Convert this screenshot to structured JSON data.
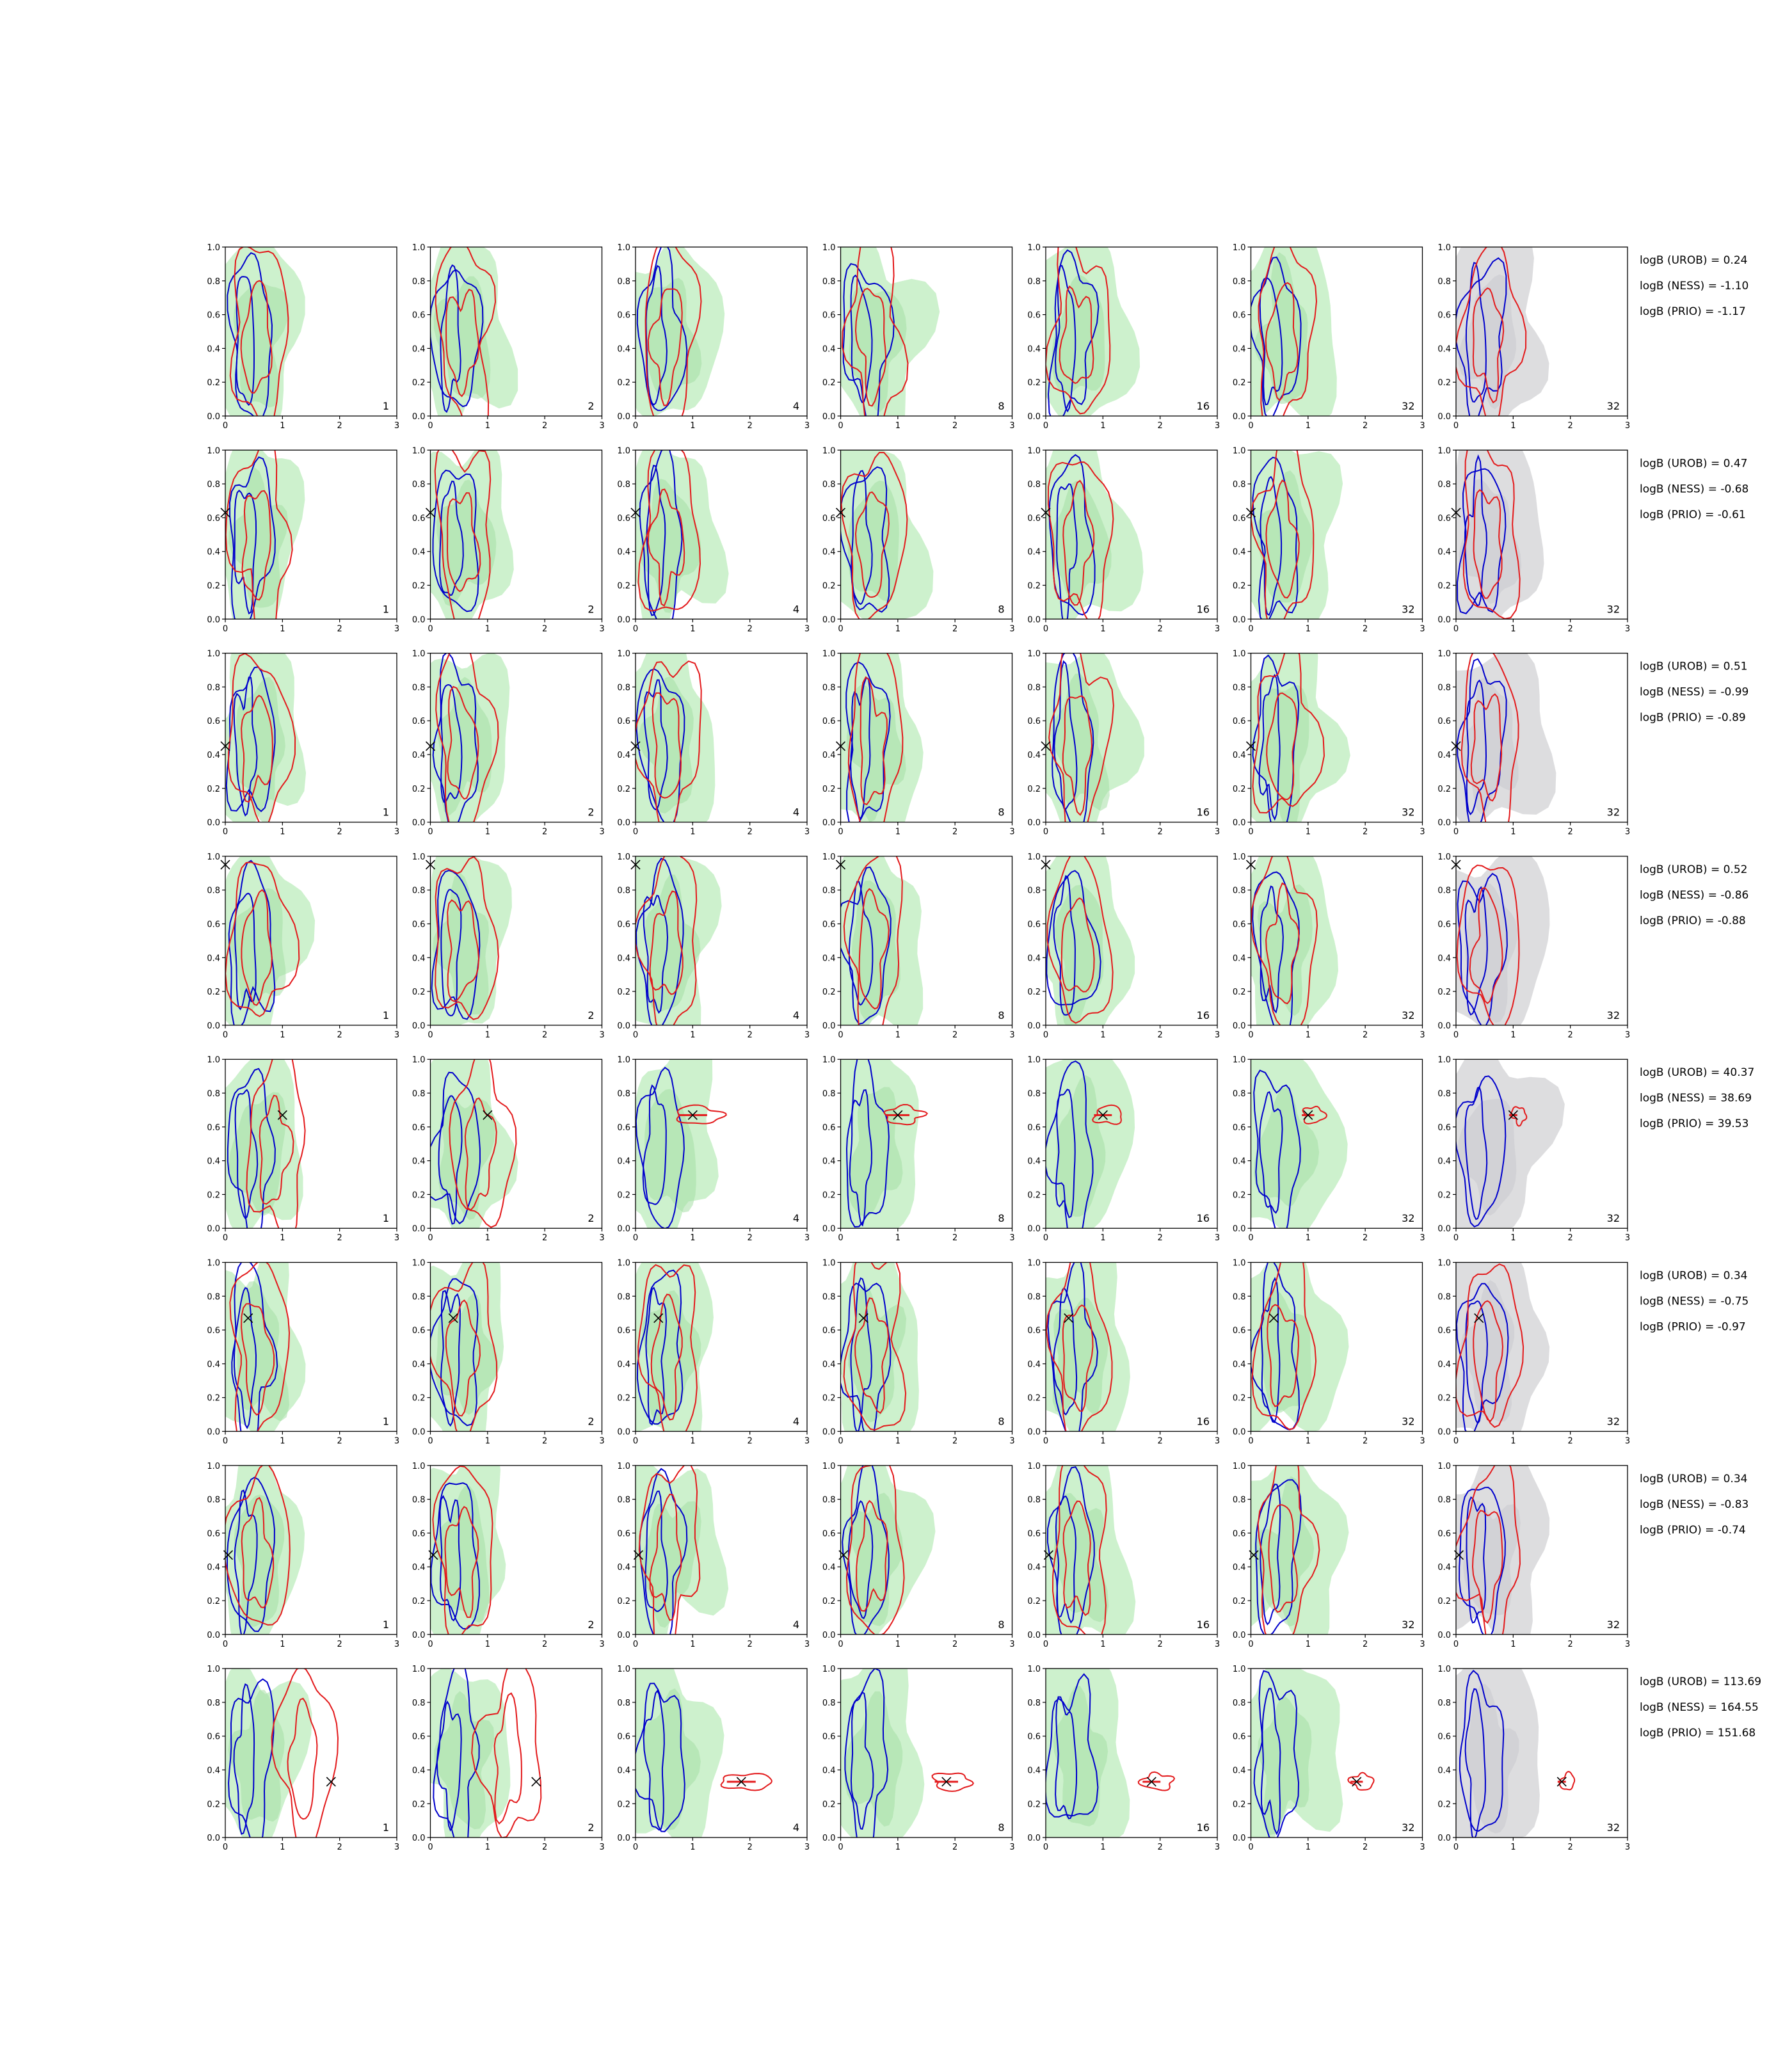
{
  "colors": {
    "green_fill": "#c8efc8",
    "green_inner": "#a5dfa5",
    "gray_fill": "#d9d9dc",
    "blue_line": "#0000cc",
    "red_line": "#e31a1c",
    "marker": "#000000"
  },
  "chart_data": {
    "type": "contour-grid",
    "rows": 8,
    "cols": 7,
    "xlim": [
      0,
      3
    ],
    "ylim": [
      0,
      1.0
    ],
    "xticks": [
      "0",
      "1",
      "2",
      "3"
    ],
    "yticks": [
      "0.0",
      "0.2",
      "0.4",
      "0.6",
      "0.8",
      "1.0"
    ],
    "column_labels": [
      "1",
      "2",
      "4",
      "8",
      "16",
      "32",
      "32"
    ],
    "row_markers": [
      null,
      {
        "x": 0.0,
        "y": 0.63
      },
      {
        "x": 0.0,
        "y": 0.45
      },
      {
        "x": 0.0,
        "y": 0.95
      },
      {
        "x": 1.0,
        "y": 0.67
      },
      {
        "x": 0.4,
        "y": 0.67
      },
      {
        "x": 0.05,
        "y": 0.47
      },
      {
        "x": 1.85,
        "y": 0.33
      }
    ],
    "row_stats": [
      [
        "logB (UROB) = 0.24",
        "logB (NESS) = -1.10",
        "logB (PRIO) = -1.17"
      ],
      [
        "logB (UROB) = 0.47",
        "logB (NESS) = -0.68",
        "logB (PRIO) = -0.61"
      ],
      [
        "logB (UROB) = 0.51",
        "logB (NESS) = -0.99",
        "logB (PRIO) = -0.89"
      ],
      [
        "logB (UROB) = 0.52",
        "logB (NESS) = -0.86",
        "logB (PRIO) = -0.88"
      ],
      [
        "logB (UROB) = 40.37",
        "logB (NESS) = 38.69",
        "logB (PRIO) = 39.53"
      ],
      [
        "logB (UROB) = 0.34",
        "logB (NESS) = -0.75",
        "logB (PRIO) = -0.97"
      ],
      [
        "logB (UROB) = 0.34",
        "logB (NESS) = -0.83",
        "logB (PRIO) = -0.74"
      ],
      [
        "logB (UROB) = 113.69",
        "logB (NESS) = 164.55",
        "logB (PRIO) = 151.68"
      ]
    ]
  }
}
